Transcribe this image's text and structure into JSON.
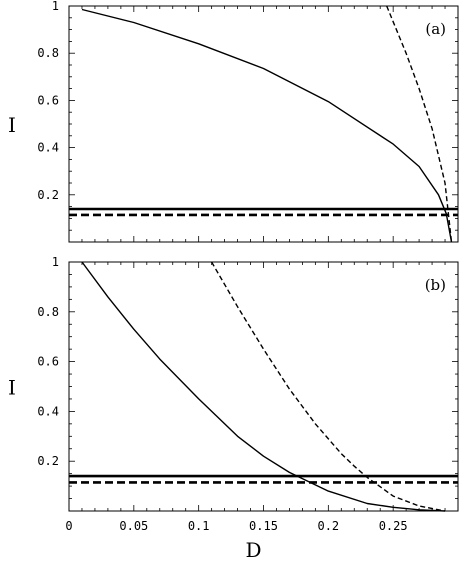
{
  "chart_data": [
    {
      "type": "line",
      "panel_label": "(a)",
      "xlabel": "D",
      "ylabel": "I",
      "xlim": [
        0,
        0.3
      ],
      "ylim": [
        0,
        1
      ],
      "x_ticks": [
        "0",
        "0.05",
        "0.1",
        "0.15",
        "0.2",
        "0.25"
      ],
      "y_ticks": [
        "0.2",
        "0.4",
        "0.6",
        "0.8",
        "1"
      ],
      "x_tick_values": [
        0,
        0.05,
        0.1,
        0.15,
        0.2,
        0.25
      ],
      "y_tick_values": [
        0.2,
        0.4,
        0.6,
        0.8,
        1
      ],
      "series": [
        {
          "style": "solid",
          "x": [
            0.01,
            0.05,
            0.1,
            0.15,
            0.2,
            0.25,
            0.27,
            0.285,
            0.291,
            0.295
          ],
          "y": [
            0.985,
            0.93,
            0.84,
            0.735,
            0.595,
            0.415,
            0.32,
            0.2,
            0.12,
            0.0
          ]
        },
        {
          "style": "dashed",
          "x": [
            0.245,
            0.26,
            0.27,
            0.28,
            0.29,
            0.295
          ],
          "y": [
            1.0,
            0.8,
            0.65,
            0.48,
            0.25,
            0.0
          ]
        },
        {
          "style": "solid-thick",
          "x": [
            0,
            0.3
          ],
          "y": [
            0.14,
            0.14
          ]
        },
        {
          "style": "dashed-thick",
          "x": [
            0,
            0.3
          ],
          "y": [
            0.115,
            0.115
          ]
        }
      ]
    },
    {
      "type": "line",
      "panel_label": "(b)",
      "xlabel": "D",
      "ylabel": "I",
      "xlim": [
        0,
        0.3
      ],
      "ylim": [
        0,
        1
      ],
      "x_ticks": [
        "0",
        "0.05",
        "0.1",
        "0.15",
        "0.2",
        "0.25"
      ],
      "y_ticks": [
        "0.2",
        "0.4",
        "0.6",
        "0.8",
        "1"
      ],
      "x_tick_values": [
        0,
        0.05,
        0.1,
        0.15,
        0.2,
        0.25
      ],
      "y_tick_values": [
        0.2,
        0.4,
        0.6,
        0.8,
        1
      ],
      "series": [
        {
          "style": "solid",
          "x": [
            0.01,
            0.03,
            0.05,
            0.07,
            0.1,
            0.13,
            0.15,
            0.17,
            0.2,
            0.23,
            0.25,
            0.27,
            0.29
          ],
          "y": [
            1.0,
            0.86,
            0.73,
            0.61,
            0.45,
            0.3,
            0.22,
            0.155,
            0.08,
            0.03,
            0.015,
            0.005,
            0.0
          ]
        },
        {
          "style": "dashed",
          "x": [
            0.11,
            0.13,
            0.15,
            0.17,
            0.19,
            0.21,
            0.22,
            0.23,
            0.25,
            0.27,
            0.29
          ],
          "y": [
            1.0,
            0.82,
            0.65,
            0.49,
            0.35,
            0.23,
            0.18,
            0.135,
            0.06,
            0.02,
            0.0
          ]
        },
        {
          "style": "solid-thick",
          "x": [
            0,
            0.3
          ],
          "y": [
            0.14,
            0.14
          ]
        },
        {
          "style": "dashed-thick",
          "x": [
            0,
            0.3
          ],
          "y": [
            0.115,
            0.115
          ]
        }
      ]
    }
  ]
}
